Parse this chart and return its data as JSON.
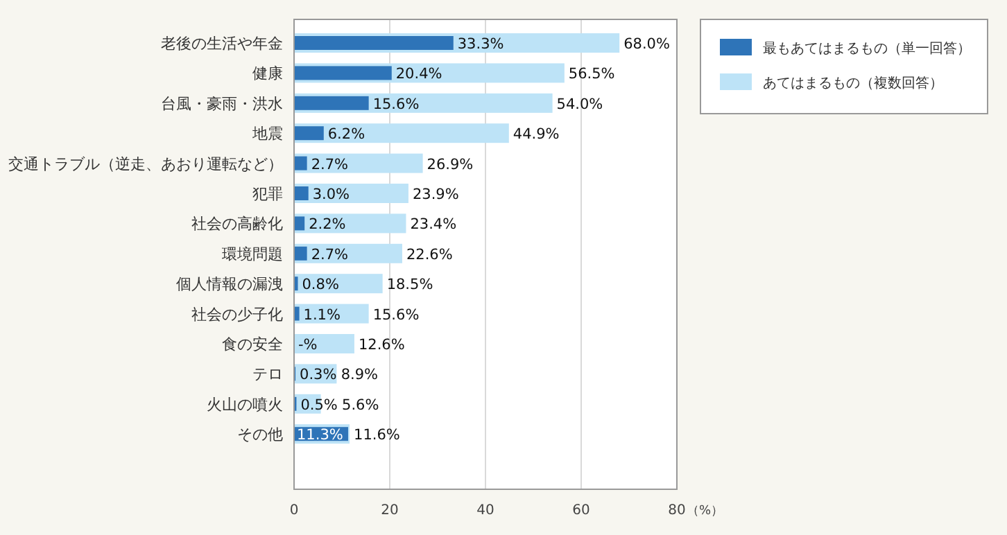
{
  "chart_data": {
    "type": "bar",
    "orientation": "horizontal",
    "categories": [
      "老後の生活や年金",
      "健康",
      "台風・豪雨・洪水",
      "地震",
      "交通トラブル（逆走、あおり運転など）",
      "犯罪",
      "社会の高齢化",
      "環境問題",
      "個人情報の漏洩",
      "社会の少子化",
      "食の安全",
      "テロ",
      "火山の噴火",
      "その他"
    ],
    "series": [
      {
        "name": "あてはまるもの（複数回答）",
        "color": "#bde3f7",
        "values": [
          68.0,
          56.5,
          54.0,
          44.9,
          26.9,
          23.9,
          23.4,
          22.6,
          18.5,
          15.6,
          12.6,
          8.9,
          5.6,
          11.6
        ],
        "value_labels": [
          "68.0%",
          "56.5%",
          "54.0%",
          "44.9%",
          "26.9%",
          "23.9%",
          "23.4%",
          "22.6%",
          "18.5%",
          "15.6%",
          "12.6%",
          "8.9%",
          "5.6%",
          "11.6%"
        ]
      },
      {
        "name": "最もあてはまるもの（単一回答）",
        "color": "#2e74b8",
        "values": [
          33.3,
          20.4,
          15.6,
          6.2,
          2.7,
          3.0,
          2.2,
          2.7,
          0.8,
          1.1,
          null,
          0.3,
          0.5,
          11.3
        ],
        "value_labels": [
          "33.3%",
          "20.4%",
          "15.6%",
          "6.2%",
          "2.7%",
          "3.0%",
          "2.2%",
          "2.7%",
          "0.8%",
          "1.1%",
          "-%",
          "0.3%",
          "0.5%",
          "11.3%"
        ]
      }
    ],
    "xlim": [
      0,
      80
    ],
    "xticks": [
      0,
      20,
      40,
      60,
      80
    ],
    "xlabel": "（%）",
    "grid": "x",
    "legend": "top right"
  }
}
